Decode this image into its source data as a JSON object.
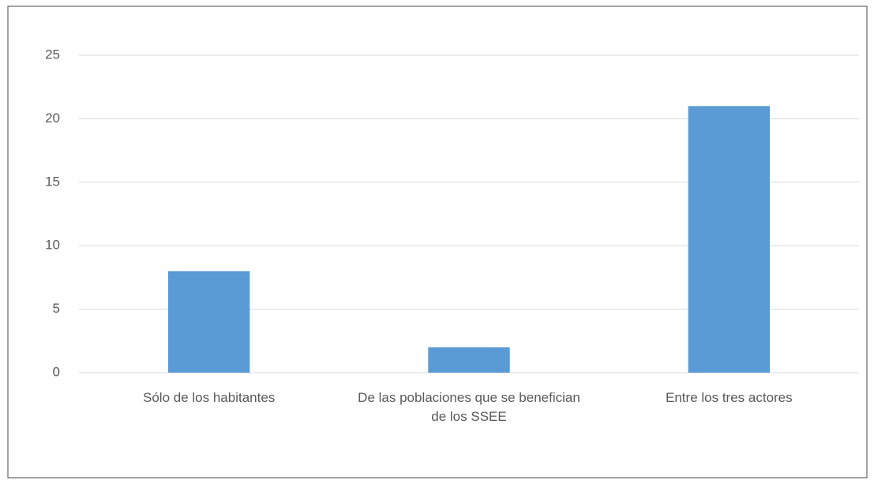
{
  "chart_data": {
    "type": "bar",
    "categories": [
      "Sólo de los habitantes",
      "De las poblaciones que se benefician de los SSEE",
      "Entre los tres actores"
    ],
    "values": [
      8,
      2,
      21
    ],
    "color": "#5b9bd5",
    "ylim": [
      0,
      25
    ],
    "yticks": [
      0,
      5,
      10,
      15,
      20,
      25
    ],
    "grid": true
  }
}
